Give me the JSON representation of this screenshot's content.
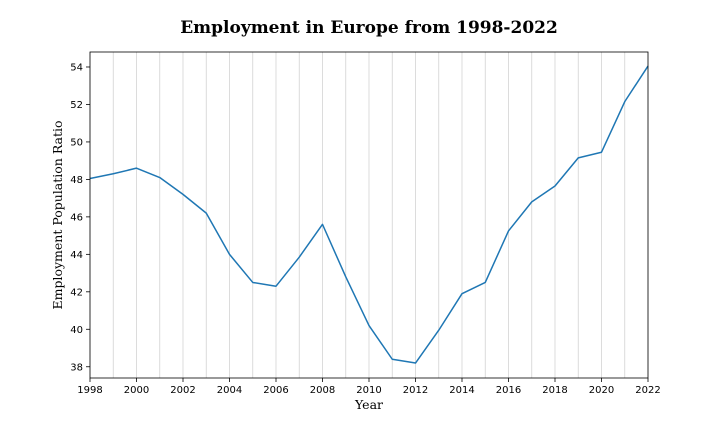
{
  "chart_data": {
    "type": "line",
    "title": "Employment in Europe from 1998-2022",
    "xlabel": "Year",
    "ylabel": "Employment Population Ratio",
    "xlim": [
      1998,
      2022
    ],
    "ylim": [
      37.4,
      54.8
    ],
    "x_ticks": [
      1998,
      2000,
      2002,
      2004,
      2006,
      2008,
      2010,
      2012,
      2014,
      2016,
      2018,
      2020,
      2022
    ],
    "x_tick_labels": [
      "1998",
      "2000",
      "2002",
      "2004",
      "2006",
      "2008",
      "2010",
      "2012",
      "2014",
      "2016",
      "2018",
      "2020",
      "2022"
    ],
    "y_ticks": [
      38,
      40,
      42,
      44,
      46,
      48,
      50,
      52,
      54
    ],
    "y_tick_labels": [
      "38",
      "40",
      "42",
      "44",
      "46",
      "48",
      "50",
      "52",
      "54"
    ],
    "grid": "vertical lines every year",
    "series": [
      {
        "color": "#1f77b4",
        "x": [
          1998,
          1999,
          2000,
          2001,
          2002,
          2003,
          2004,
          2005,
          2006,
          2007,
          2008,
          2009,
          2010,
          2011,
          2012,
          2013,
          2014,
          2015,
          2016,
          2017,
          2018,
          2019,
          2020,
          2021,
          2022
        ],
        "values": [
          48.05,
          48.3,
          48.6,
          48.1,
          47.2,
          46.2,
          44.0,
          42.5,
          42.3,
          43.85,
          45.6,
          42.8,
          40.2,
          38.4,
          38.2,
          39.95,
          41.9,
          42.5,
          45.25,
          46.8,
          47.65,
          49.15,
          49.45,
          52.15,
          54.05
        ]
      }
    ]
  }
}
